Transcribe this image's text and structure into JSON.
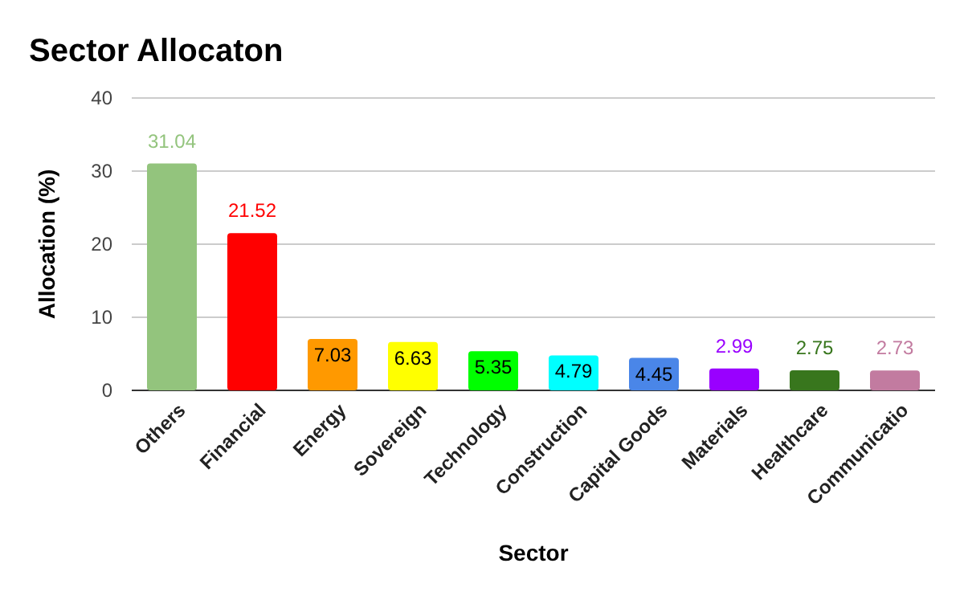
{
  "chart_data": {
    "type": "bar",
    "title": "Sector Allocaton",
    "xlabel": "Sector",
    "ylabel": "Allocation (%)",
    "categories": [
      "Others",
      "Financial",
      "Energy",
      "Sovereign",
      "Technology",
      "Construction",
      "Capital Goods",
      "Materials",
      "Healthcare",
      "Communicatio"
    ],
    "values": [
      31.04,
      21.52,
      7.03,
      6.63,
      5.35,
      4.79,
      4.45,
      2.99,
      2.75,
      2.73
    ],
    "colors": [
      "#93c47d",
      "#ff0000",
      "#ff9900",
      "#ffff00",
      "#00ff00",
      "#00ffff",
      "#4a86e8",
      "#9900ff",
      "#38761d",
      "#c27ba0"
    ],
    "ylim": [
      0,
      40
    ],
    "yticks": [
      0,
      10,
      20,
      30,
      40
    ],
    "grid": "y",
    "data_labels": true
  }
}
